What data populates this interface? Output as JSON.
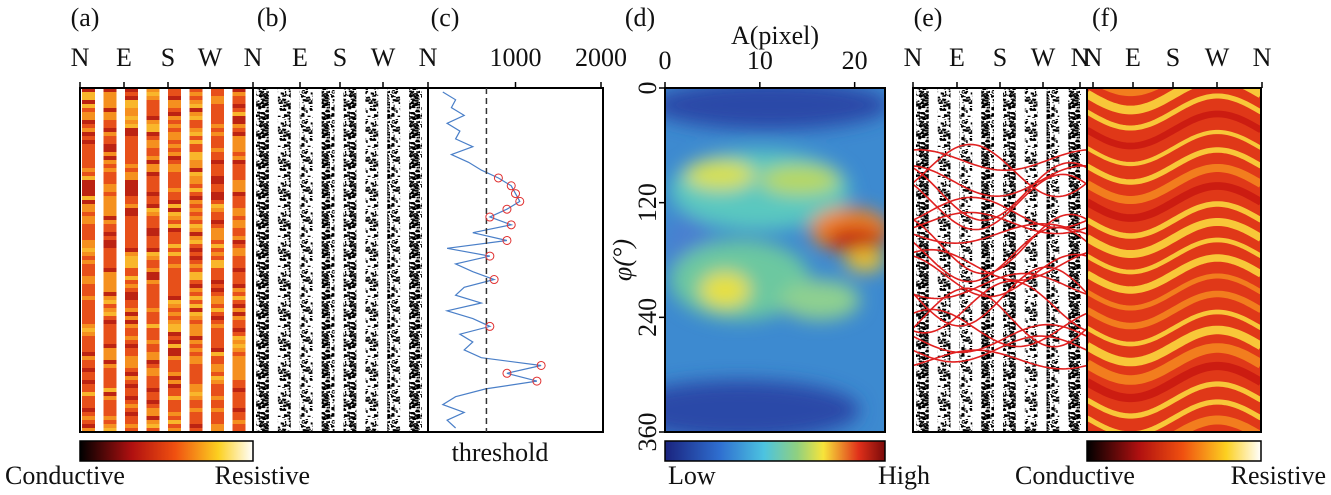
{
  "panels": {
    "a": {
      "label": "(a)",
      "directions": [
        "N",
        "E",
        "S",
        "W",
        "N"
      ],
      "colorbar": {
        "low": "Conductive",
        "high": "Resistive"
      }
    },
    "b": {
      "label": "(b)",
      "directions": [
        "E",
        "S",
        "W",
        "N"
      ]
    },
    "c": {
      "label": "(c)",
      "xlim": [
        0,
        2000
      ],
      "xticks": [
        1000,
        2000
      ],
      "threshold": 660,
      "xlabel": "threshold",
      "profile": [
        150,
        300,
        250,
        400,
        200,
        350,
        300,
        500,
        250,
        450,
        600,
        800,
        950,
        1000,
        1050,
        900,
        700,
        950,
        500,
        900,
        200,
        700,
        300,
        500,
        750,
        400,
        300,
        600,
        200,
        500,
        700,
        350,
        500,
        400,
        600,
        1300,
        900,
        1250,
        650,
        300,
        150,
        400,
        200,
        300
      ]
    },
    "d": {
      "label": "(d)",
      "xlabel": "A(pixel)",
      "ylabel": "φ(°)",
      "xlim": [
        0,
        23.2
      ],
      "xticks": [
        0,
        10,
        20
      ],
      "ylim": [
        0,
        360
      ],
      "yticks": [
        0,
        120,
        240,
        360
      ],
      "colorbar": {
        "low": "Low",
        "high": "High"
      }
    },
    "e": {
      "label": "(e)",
      "directions": [
        "N",
        "E",
        "S",
        "W",
        "N"
      ]
    },
    "f": {
      "label": "(f)",
      "directions": [
        "N",
        "E",
        "S",
        "W",
        "N"
      ],
      "colorbar": {
        "low": "Conductive",
        "high": "Resistive"
      }
    }
  }
}
